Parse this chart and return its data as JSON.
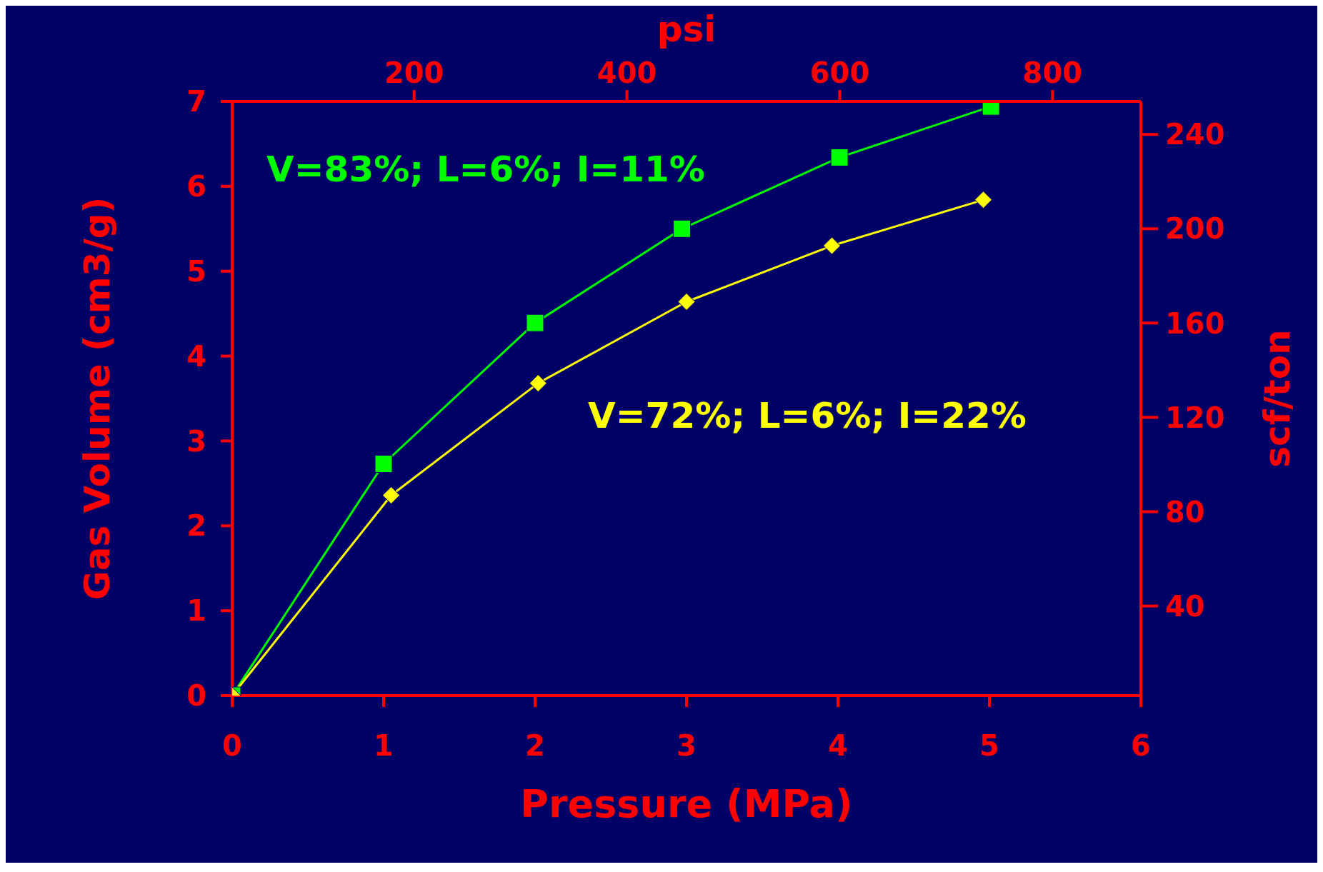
{
  "chart_data": {
    "type": "line",
    "xlabel": "Pressure (MPa)",
    "ylabel": "Gas Volume (cm3/g)",
    "y2label": "scf/ton",
    "x2label": "psi",
    "xlim": [
      0,
      6
    ],
    "xticks": [
      0,
      1,
      2,
      3,
      4,
      5,
      6
    ],
    "ylim": [
      0,
      7
    ],
    "yticks": [
      0,
      1,
      2,
      3,
      4,
      5,
      6,
      7
    ],
    "x2lim": [
      29,
      883
    ],
    "x2ticks": [
      200,
      400,
      600,
      800
    ],
    "y2lim": [
      2,
      254
    ],
    "y2ticks": [
      40,
      80,
      120,
      160,
      200,
      240
    ],
    "series": [
      {
        "color": "#00ff00",
        "marker": "square",
        "x": [
          0,
          1.0,
          2.0,
          2.97,
          4.01,
          5.01
        ],
        "values": [
          0,
          2.73,
          4.39,
          5.5,
          6.34,
          6.94
        ]
      },
      {
        "color": "#ffff00",
        "marker": "diamond",
        "x": [
          0,
          1.05,
          2.02,
          3.0,
          3.96,
          4.96
        ],
        "values": [
          0,
          2.36,
          3.68,
          4.64,
          5.3,
          5.84
        ]
      }
    ],
    "annotations": [
      "V=83%; L=6%; I=11%",
      "V=72%; L=6%; I=22%"
    ]
  }
}
